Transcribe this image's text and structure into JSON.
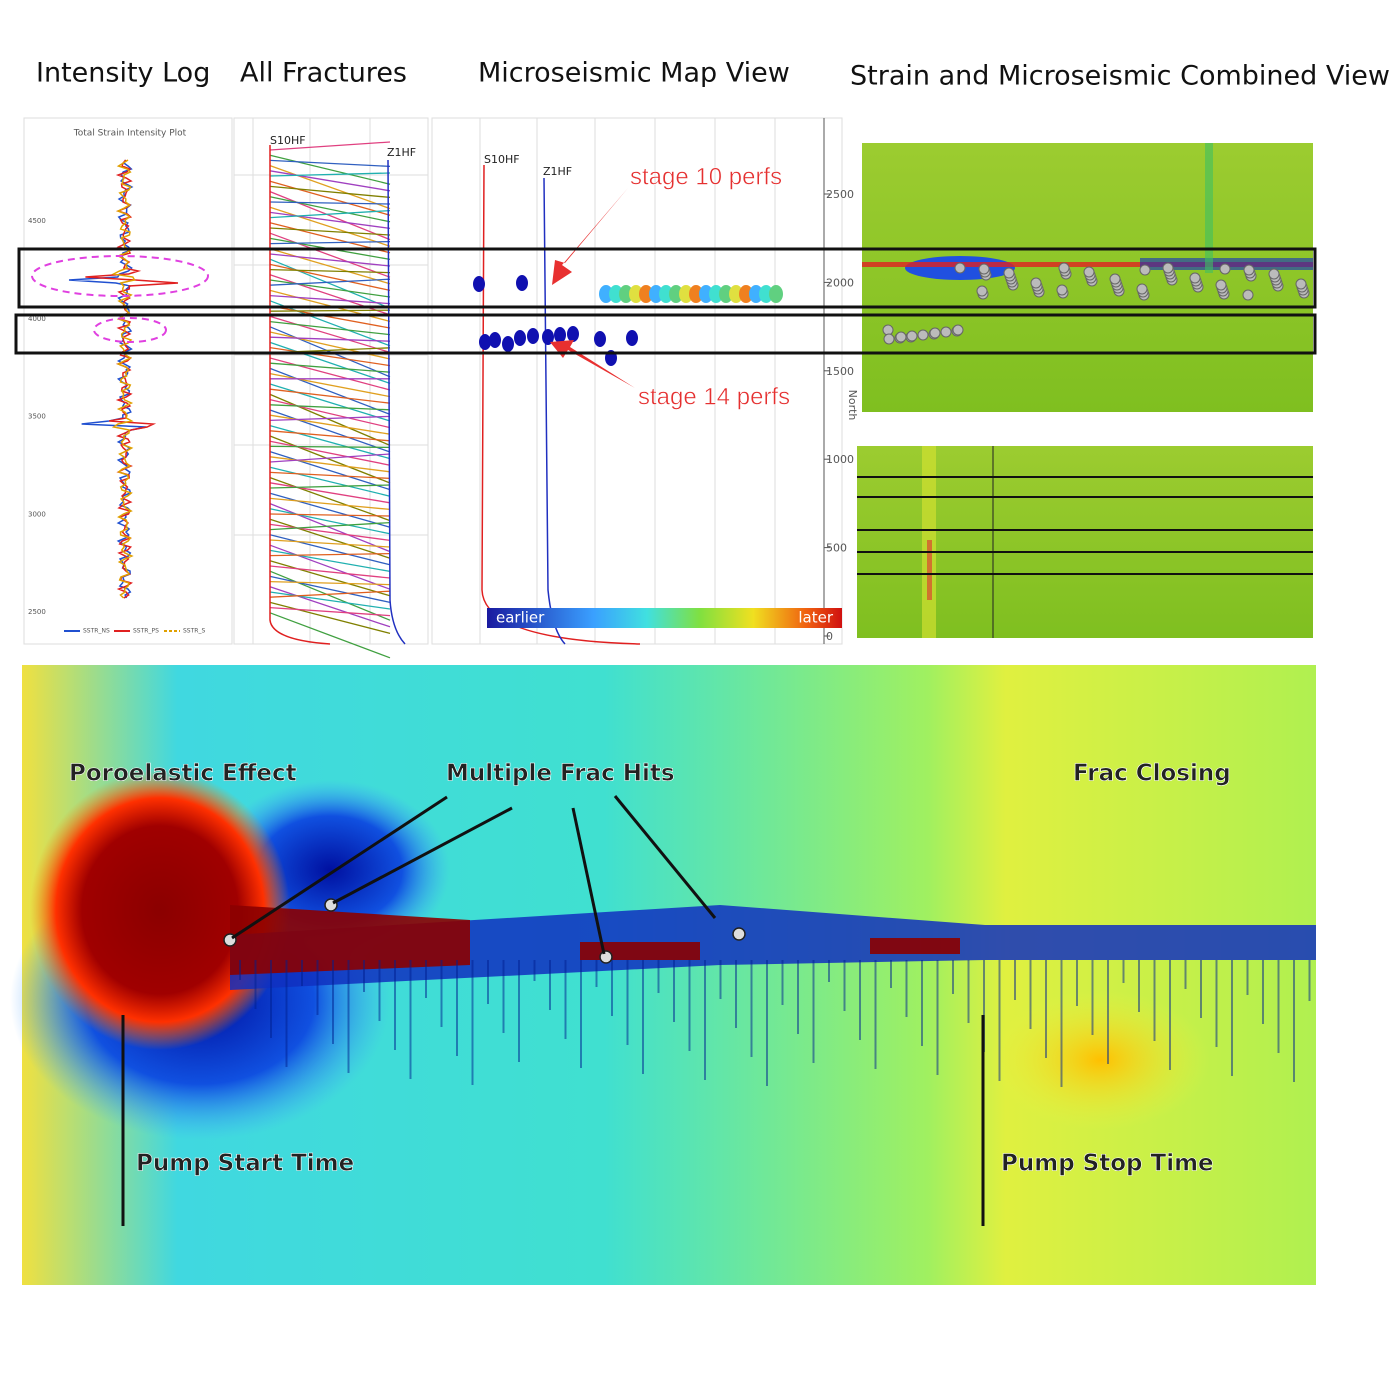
{
  "headings": [
    "Intensity Log",
    "All Fractures",
    "Microseismic Map View",
    "Strain and Microseismic Combined View"
  ],
  "intensity_log": {
    "title": "Total Strain Intensity Plot",
    "yticks": [
      4500,
      4000,
      3500,
      3000,
      2500
    ],
    "legend": [
      "SSTR_NS",
      "SSTR_PS",
      "SSTR_S"
    ]
  },
  "fractures": {
    "wells": [
      "S10HF",
      "Z1HF"
    ]
  },
  "microseismic": {
    "wells": [
      "S10HF",
      "Z1HF"
    ],
    "yticks": [
      2500,
      2000,
      1500,
      1000,
      500,
      0
    ],
    "axis_label": "North",
    "annotations": [
      "stage 10 perfs",
      "stage 14 perfs"
    ],
    "colorbar": [
      "earlier",
      "later"
    ]
  },
  "waterfall": {
    "annotations": [
      "Poroelastic Effect",
      "Multiple Frac Hits",
      "Frac Closing",
      "Pump Start Time",
      "Pump Stop Time"
    ]
  }
}
